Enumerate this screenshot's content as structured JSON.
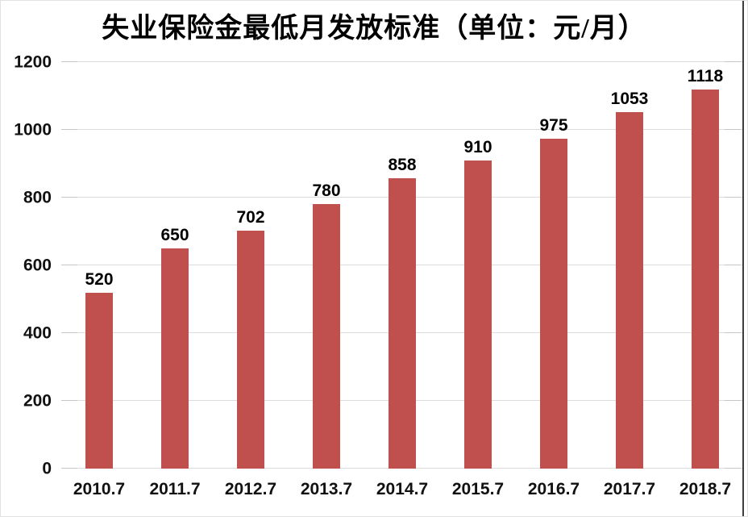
{
  "chart_data": {
    "type": "bar",
    "title": "失业保险金最低月发放标准（单位：元/月）",
    "categories": [
      "2010.7",
      "2011.7",
      "2012.7",
      "2013.7",
      "2014.7",
      "2015.7",
      "2016.7",
      "2017.7",
      "2018.7"
    ],
    "values": [
      520,
      650,
      702,
      780,
      858,
      910,
      975,
      1053,
      1118
    ],
    "xlabel": "",
    "ylabel": "",
    "ylim": [
      0,
      1200
    ],
    "yticks": [
      0,
      200,
      400,
      600,
      800,
      1000,
      1200
    ],
    "grid": "horizontal",
    "legend": "none",
    "data_labels": [
      "520",
      "650",
      "702",
      "780",
      "858",
      "910",
      "975",
      "1053",
      "1118"
    ]
  },
  "colors": {
    "bar": "#C0504D",
    "gridline": "#DCDCDC",
    "tick": "#C6C6C6",
    "right_edge_line": "#3F3F3F",
    "text": "#000000",
    "background": "#FFFFFF"
  }
}
